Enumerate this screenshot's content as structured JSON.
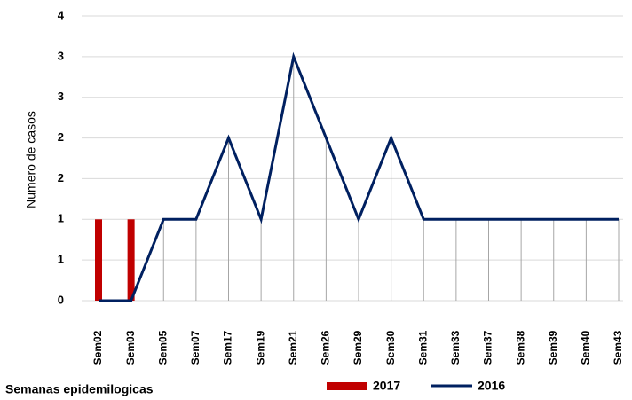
{
  "chart_data": {
    "type": "bar-line",
    "x_label": "Semanas epidemilogicas",
    "y_label": "Numero de casos",
    "categories": [
      "Sem02",
      "Sem03",
      "Sem05",
      "Sem07",
      "Sem17",
      "Sem19",
      "Sem21",
      "Sem26",
      "Sem29",
      "Sem30",
      "Sem31",
      "Sem33",
      "Sem37",
      "Sem38",
      "Sem39",
      "Sem40",
      "Sem43"
    ],
    "series": [
      {
        "name": "2017",
        "type": "bar",
        "color": "#c00000",
        "values": [
          1,
          1,
          null,
          null,
          null,
          null,
          null,
          null,
          null,
          null,
          null,
          null,
          null,
          null,
          null,
          null,
          null
        ]
      },
      {
        "name": "2016",
        "type": "line",
        "color": "#002060",
        "values": [
          0,
          0,
          1,
          1,
          2,
          1,
          3,
          2,
          1,
          2,
          1,
          1,
          1,
          1,
          1,
          1,
          1
        ]
      }
    ],
    "ylim": [
      0,
      3.5
    ],
    "yticks": [
      0,
      {
        "value": 0.5,
        "label": "1"
      },
      1,
      {
        "value": 1.5,
        "label": "2"
      },
      2,
      {
        "value": 2.5,
        "label": "3"
      },
      3,
      {
        "value": 3.5,
        "label": "4"
      }
    ],
    "grid": true,
    "legend": "bottom"
  }
}
